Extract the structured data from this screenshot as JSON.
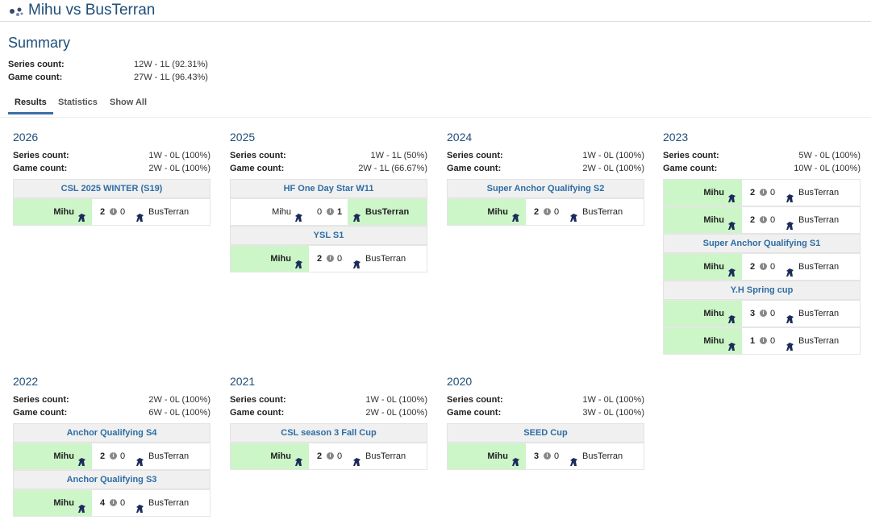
{
  "header": {
    "title": "Mihu vs BusTerran",
    "icon": "matchup-icon"
  },
  "summary": {
    "heading": "Summary",
    "series_label": "Series count:",
    "series_value": "12W - 1L (92.31%)",
    "game_label": "Game count:",
    "game_value": "27W - 1L (96.43%)"
  },
  "tabs": [
    "Results",
    "Statistics",
    "Show All"
  ],
  "labels": {
    "series": "Series count:",
    "game": "Game count:"
  },
  "years": [
    {
      "year": "2026",
      "series": "1W - 0L (100%)",
      "games": "2W - 0L (100%)",
      "entries": [
        {
          "type": "tournament",
          "name": "CSL 2025 WINTER (S19)"
        },
        {
          "type": "match",
          "p1": "Mihu",
          "s1": "2",
          "s2": "0",
          "p2": "BusTerran",
          "winner": 1
        }
      ]
    },
    {
      "year": "2025",
      "series": "1W - 1L (50%)",
      "games": "2W - 1L (66.67%)",
      "entries": [
        {
          "type": "tournament",
          "name": "HF One Day Star W11"
        },
        {
          "type": "match",
          "p1": "Mihu",
          "s1": "0",
          "s2": "1",
          "p2": "BusTerran",
          "winner": 2
        },
        {
          "type": "tournament",
          "name": "YSL S1"
        },
        {
          "type": "match",
          "p1": "Mihu",
          "s1": "2",
          "s2": "0",
          "p2": "BusTerran",
          "winner": 1
        }
      ]
    },
    {
      "year": "2024",
      "series": "1W - 0L (100%)",
      "games": "2W - 0L (100%)",
      "entries": [
        {
          "type": "tournament",
          "name": "Super Anchor Qualifying S2"
        },
        {
          "type": "match",
          "p1": "Mihu",
          "s1": "2",
          "s2": "0",
          "p2": "BusTerran",
          "winner": 1
        }
      ]
    },
    {
      "year": "2023",
      "series": "5W - 0L (100%)",
      "games": "10W - 0L (100%)",
      "entries": [
        {
          "type": "match",
          "p1": "Mihu",
          "s1": "2",
          "s2": "0",
          "p2": "BusTerran",
          "winner": 1
        },
        {
          "type": "match",
          "p1": "Mihu",
          "s1": "2",
          "s2": "0",
          "p2": "BusTerran",
          "winner": 1
        },
        {
          "type": "tournament",
          "name": "Super Anchor Qualifying S1"
        },
        {
          "type": "match",
          "p1": "Mihu",
          "s1": "2",
          "s2": "0",
          "p2": "BusTerran",
          "winner": 1
        },
        {
          "type": "tournament",
          "name": "Y.H Spring cup"
        },
        {
          "type": "match",
          "p1": "Mihu",
          "s1": "3",
          "s2": "0",
          "p2": "BusTerran",
          "winner": 1
        },
        {
          "type": "match",
          "p1": "Mihu",
          "s1": "1",
          "s2": "0",
          "p2": "BusTerran",
          "winner": 1
        }
      ]
    },
    {
      "year": "2022",
      "series": "2W - 0L (100%)",
      "games": "6W - 0L (100%)",
      "entries": [
        {
          "type": "tournament",
          "name": "Anchor Qualifying S4"
        },
        {
          "type": "match",
          "p1": "Mihu",
          "s1": "2",
          "s2": "0",
          "p2": "BusTerran",
          "winner": 1
        },
        {
          "type": "tournament",
          "name": "Anchor Qualifying S3"
        },
        {
          "type": "match",
          "p1": "Mihu",
          "s1": "4",
          "s2": "0",
          "p2": "BusTerran",
          "winner": 1
        }
      ]
    },
    {
      "year": "2021",
      "series": "1W - 0L (100%)",
      "games": "2W - 0L (100%)",
      "entries": [
        {
          "type": "tournament",
          "name": "CSL season 3 Fall Cup"
        },
        {
          "type": "match",
          "p1": "Mihu",
          "s1": "2",
          "s2": "0",
          "p2": "BusTerran",
          "winner": 1
        }
      ]
    },
    {
      "year": "2020",
      "series": "1W - 0L (100%)",
      "games": "3W - 0L (100%)",
      "entries": [
        {
          "type": "tournament",
          "name": "SEED Cup"
        },
        {
          "type": "match",
          "p1": "Mihu",
          "s1": "3",
          "s2": "0",
          "p2": "BusTerran",
          "winner": 1
        }
      ]
    }
  ],
  "colors": {
    "heading": "#1f4e79",
    "link": "#2e6da4",
    "win_bg": "#ccf5c8",
    "tab_accent": "#3c6fa6"
  },
  "icons": {
    "race": "terran-race-icon",
    "info": "info-icon"
  }
}
